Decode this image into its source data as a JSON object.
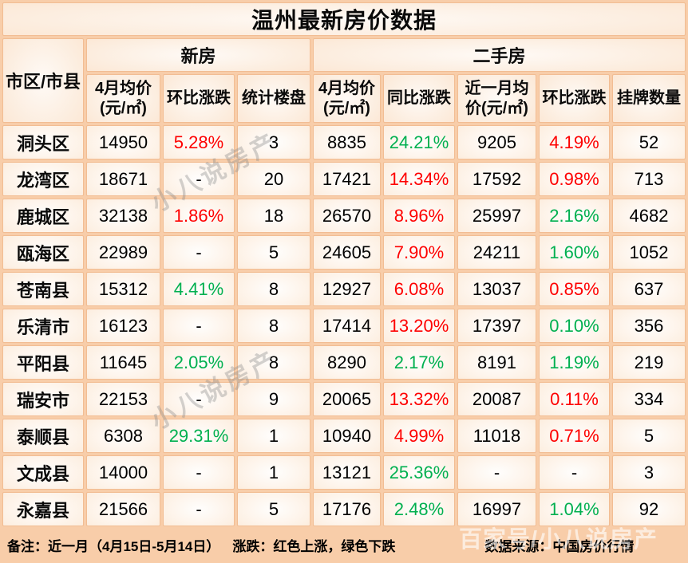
{
  "chart_data": {
    "type": "table",
    "title": "温州最新房价数据",
    "corner": "市区/市县",
    "groups": [
      {
        "label": "新房",
        "colspan": 3
      },
      {
        "label": "二手房",
        "colspan": 5
      }
    ],
    "sub_headers": [
      "4月均价\n(元/㎡)",
      "环比涨跌",
      "统计楼盘",
      "4月均价\n(元/㎡)",
      "同比涨跌",
      "近一月均\n价(元/㎡)",
      "环比涨跌",
      "挂牌数量"
    ],
    "color_key": {
      "r": "#fe0000",
      "g": "#00b050",
      "k": "#000000"
    },
    "rows": [
      {
        "region": "洞头区",
        "cells": [
          {
            "t": "14950",
            "c": "k"
          },
          {
            "t": "5.28%",
            "c": "r"
          },
          {
            "t": "3",
            "c": "k"
          },
          {
            "t": "8835",
            "c": "k"
          },
          {
            "t": "24.21%",
            "c": "g"
          },
          {
            "t": "9205",
            "c": "k"
          },
          {
            "t": "4.19%",
            "c": "r"
          },
          {
            "t": "52",
            "c": "k"
          }
        ]
      },
      {
        "region": "龙湾区",
        "cells": [
          {
            "t": "18671",
            "c": "k"
          },
          {
            "t": "-",
            "c": "k"
          },
          {
            "t": "20",
            "c": "k"
          },
          {
            "t": "17421",
            "c": "k"
          },
          {
            "t": "14.34%",
            "c": "r"
          },
          {
            "t": "17592",
            "c": "k"
          },
          {
            "t": "0.98%",
            "c": "r"
          },
          {
            "t": "713",
            "c": "k"
          }
        ]
      },
      {
        "region": "鹿城区",
        "cells": [
          {
            "t": "32138",
            "c": "k"
          },
          {
            "t": "1.86%",
            "c": "r"
          },
          {
            "t": "18",
            "c": "k"
          },
          {
            "t": "26570",
            "c": "k"
          },
          {
            "t": "8.96%",
            "c": "r"
          },
          {
            "t": "25997",
            "c": "k"
          },
          {
            "t": "2.16%",
            "c": "g"
          },
          {
            "t": "4682",
            "c": "k"
          }
        ]
      },
      {
        "region": "瓯海区",
        "cells": [
          {
            "t": "22989",
            "c": "k"
          },
          {
            "t": "-",
            "c": "k"
          },
          {
            "t": "5",
            "c": "k"
          },
          {
            "t": "24605",
            "c": "k"
          },
          {
            "t": "7.90%",
            "c": "r"
          },
          {
            "t": "24211",
            "c": "k"
          },
          {
            "t": "1.60%",
            "c": "g"
          },
          {
            "t": "1052",
            "c": "k"
          }
        ]
      },
      {
        "region": "苍南县",
        "cells": [
          {
            "t": "15312",
            "c": "k"
          },
          {
            "t": "4.41%",
            "c": "g"
          },
          {
            "t": "8",
            "c": "k"
          },
          {
            "t": "12927",
            "c": "k"
          },
          {
            "t": "6.08%",
            "c": "r"
          },
          {
            "t": "13037",
            "c": "k"
          },
          {
            "t": "0.85%",
            "c": "r"
          },
          {
            "t": "637",
            "c": "k"
          }
        ]
      },
      {
        "region": "乐清市",
        "cells": [
          {
            "t": "16123",
            "c": "k"
          },
          {
            "t": "-",
            "c": "k"
          },
          {
            "t": "8",
            "c": "k"
          },
          {
            "t": "17414",
            "c": "k"
          },
          {
            "t": "13.20%",
            "c": "r"
          },
          {
            "t": "17397",
            "c": "k"
          },
          {
            "t": "0.10%",
            "c": "g"
          },
          {
            "t": "356",
            "c": "k"
          }
        ]
      },
      {
        "region": "平阳县",
        "cells": [
          {
            "t": "11645",
            "c": "k"
          },
          {
            "t": "2.05%",
            "c": "g"
          },
          {
            "t": "8",
            "c": "k"
          },
          {
            "t": "8290",
            "c": "k"
          },
          {
            "t": "2.17%",
            "c": "g"
          },
          {
            "t": "8191",
            "c": "k"
          },
          {
            "t": "1.19%",
            "c": "g"
          },
          {
            "t": "219",
            "c": "k"
          }
        ]
      },
      {
        "region": "瑞安市",
        "cells": [
          {
            "t": "22153",
            "c": "k"
          },
          {
            "t": "-",
            "c": "k"
          },
          {
            "t": "9",
            "c": "k"
          },
          {
            "t": "20065",
            "c": "k"
          },
          {
            "t": "13.32%",
            "c": "r"
          },
          {
            "t": "20087",
            "c": "k"
          },
          {
            "t": "0.11%",
            "c": "r"
          },
          {
            "t": "334",
            "c": "k"
          }
        ]
      },
      {
        "region": "泰顺县",
        "cells": [
          {
            "t": "6308",
            "c": "k"
          },
          {
            "t": "29.31%",
            "c": "g"
          },
          {
            "t": "1",
            "c": "k"
          },
          {
            "t": "10940",
            "c": "k"
          },
          {
            "t": "4.99%",
            "c": "r"
          },
          {
            "t": "11018",
            "c": "k"
          },
          {
            "t": "0.71%",
            "c": "r"
          },
          {
            "t": "5",
            "c": "k"
          }
        ]
      },
      {
        "region": "文成县",
        "cells": [
          {
            "t": "14000",
            "c": "k"
          },
          {
            "t": "-",
            "c": "k"
          },
          {
            "t": "1",
            "c": "k"
          },
          {
            "t": "13121",
            "c": "k"
          },
          {
            "t": "25.36%",
            "c": "g"
          },
          {
            "t": "-",
            "c": "k"
          },
          {
            "t": "-",
            "c": "k"
          },
          {
            "t": "3",
            "c": "k"
          }
        ]
      },
      {
        "region": "永嘉县",
        "cells": [
          {
            "t": "21566",
            "c": "k"
          },
          {
            "t": "-",
            "c": "k"
          },
          {
            "t": "5",
            "c": "k"
          },
          {
            "t": "17176",
            "c": "k"
          },
          {
            "t": "2.48%",
            "c": "g"
          },
          {
            "t": "16997",
            "c": "k"
          },
          {
            "t": "1.04%",
            "c": "g"
          },
          {
            "t": "92",
            "c": "k"
          }
        ]
      }
    ]
  },
  "footnote": {
    "note": "备注：近一月（4月15日-5月14日）",
    "legend": "涨跌：红色上涨，绿色下跌",
    "source": "数据来源：中国房价行情"
  },
  "watermarks": {
    "diagonal": "小八说房产",
    "bottom": "百家号/小八说房产"
  }
}
